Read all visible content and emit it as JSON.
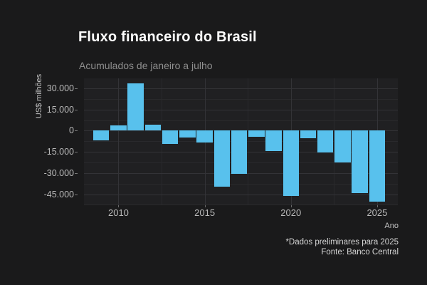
{
  "colors": {
    "page_bg": "#1a1a1b",
    "panel_bg": "#202022",
    "grid_major": "#333337",
    "grid_minor": "#29292c",
    "bar": "#58c1ed",
    "title_text": "#fdfdfd",
    "subtitle_text": "#8e8e8e",
    "tick_text": "#b9b9b9",
    "axis_title_text": "#c6c6c6",
    "caption_text": "#d6d6d6"
  },
  "chart_data": {
    "type": "bar",
    "title": "Fluxo financeiro do Brasil",
    "subtitle": "Acumulados de janeiro a julho",
    "xlabel": "Ano",
    "ylabel": "US$ milhões",
    "caption_note": "*Dados preliminares para 2025",
    "caption_source": "Fonte: Banco Central",
    "legend": "none",
    "grid": true,
    "x": [
      2009,
      2010,
      2011,
      2012,
      2013,
      2014,
      2015,
      2016,
      2017,
      2018,
      2019,
      2020,
      2021,
      2022,
      2023,
      2024,
      2025
    ],
    "values": [
      -7000,
      3700,
      33500,
      4100,
      -9200,
      -5000,
      -8200,
      -39500,
      -30800,
      -4400,
      -14300,
      -46000,
      -5200,
      -15500,
      -22700,
      -44000,
      -50100
    ],
    "units": "US$ milhões",
    "bar_width_years": 0.925,
    "xlim": [
      2008.0,
      2026.2
    ],
    "ylim": [
      -52800,
      37100
    ],
    "y_ticks": [
      {
        "value": 30000,
        "label": "30.000"
      },
      {
        "value": 15000,
        "label": "15.000"
      },
      {
        "value": 0,
        "label": "0"
      },
      {
        "value": -15000,
        "label": "-15.000"
      },
      {
        "value": -30000,
        "label": "-30.000"
      },
      {
        "value": -45000,
        "label": "-45.000"
      }
    ],
    "y_minor": [
      22500,
      7500,
      -7500,
      -22500,
      -37500,
      -52500
    ],
    "x_ticks": [
      {
        "value": 2010,
        "label": "2010"
      },
      {
        "value": 2015,
        "label": "2015"
      },
      {
        "value": 2020,
        "label": "2020"
      },
      {
        "value": 2025,
        "label": "2025"
      }
    ],
    "x_minor": [
      2012.5,
      2017.5,
      2022.5
    ]
  }
}
